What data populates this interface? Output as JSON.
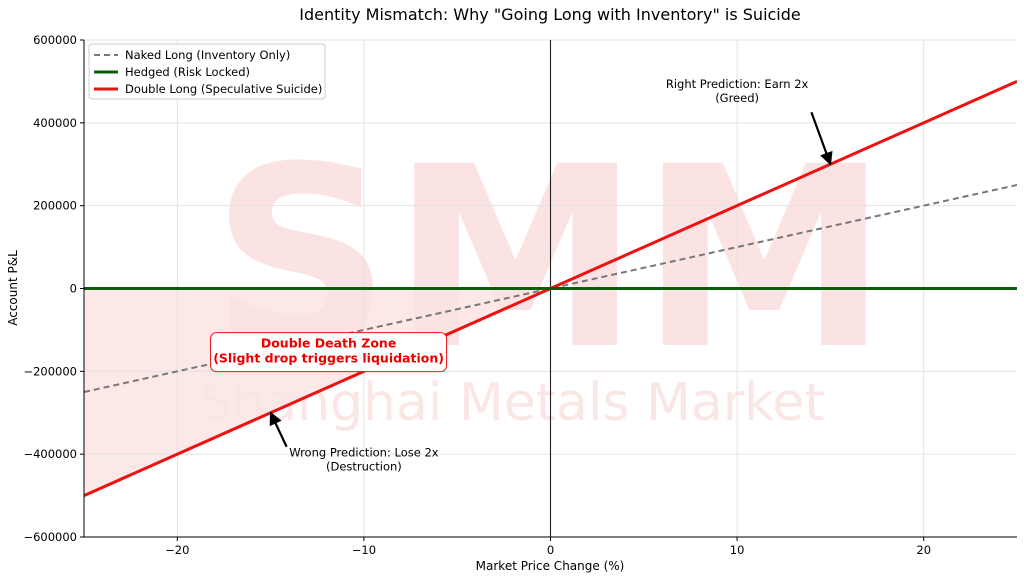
{
  "chart_data": {
    "type": "line",
    "title": "Identity Mismatch: Why \"Going Long with Inventory\" is Suicide",
    "xlabel": "Market Price Change (%)",
    "ylabel": "Account P&L",
    "xlim": [
      -25,
      25
    ],
    "ylim": [
      -600000,
      600000
    ],
    "xticks": [
      -20,
      -10,
      0,
      10,
      20
    ],
    "xtick_labels": [
      "−20",
      "−10",
      "0",
      "10",
      "20"
    ],
    "yticks": [
      -600000,
      -400000,
      -200000,
      0,
      200000,
      400000,
      600000
    ],
    "ytick_labels": [
      "−600000",
      "−400000",
      "−200000",
      "0",
      "200000",
      "400000",
      "600000"
    ],
    "grid": true,
    "legend_position": "top-left",
    "series": [
      {
        "name": "Naked Long (Inventory Only)",
        "color": "#777777",
        "style": "dashed",
        "x": [
          -25,
          25
        ],
        "y": [
          -250000,
          250000
        ]
      },
      {
        "name": "Hedged (Risk Locked)",
        "color": "#0b5d0b",
        "style": "solid",
        "x": [
          -25,
          25
        ],
        "y": [
          0,
          0
        ]
      },
      {
        "name": "Double Long (Speculative Suicide)",
        "color": "#ee1111",
        "style": "solid",
        "x": [
          -25,
          25
        ],
        "y": [
          -500000,
          500000
        ]
      }
    ],
    "shaded_region": {
      "x": [
        -25,
        0
      ],
      "description_color": "#fde4e4"
    },
    "annotations": [
      {
        "id": "right",
        "lines": [
          "Right Prediction: Earn 2x",
          "(Greed)"
        ],
        "point": [
          15,
          300000
        ],
        "text_at": [
          10,
          460000
        ]
      },
      {
        "id": "wrong",
        "lines": [
          "Wrong Prediction: Lose 2x",
          "(Destruction)"
        ],
        "point": [
          -15,
          -300000
        ],
        "text_at": [
          -10,
          -430000
        ]
      },
      {
        "id": "zone",
        "lines": [
          "Double Death Zone",
          "(Slight drop triggers liquidation)"
        ],
        "text_at": [
          -12,
          -150000
        ]
      }
    ],
    "watermark": {
      "logo": "SMM",
      "text": "Shanghai Metals Market"
    }
  }
}
